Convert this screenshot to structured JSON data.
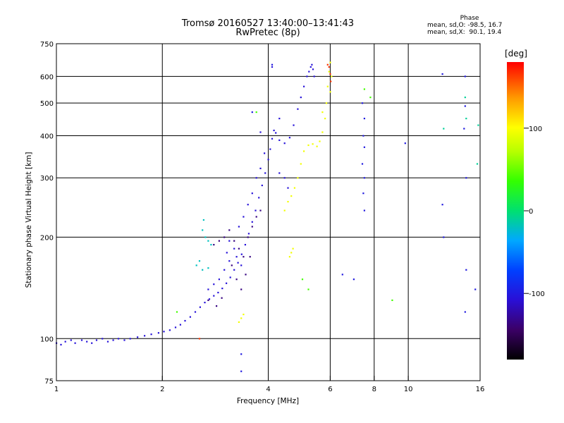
{
  "header": {
    "title_line1": "Tromsø 20160527 13:40:00–13:41:43",
    "title_line2": "RwPretec (8p)"
  },
  "phase_info": {
    "heading": "Phase",
    "o_mode": "mean, sd,O: -98.5, 16.7",
    "x_mode": "mean, sd,X:  90.1, 19.4"
  },
  "colorbar": {
    "unit_label": "[deg]",
    "tick_labels": [
      "100",
      "0",
      "-100"
    ],
    "tick_values": [
      100,
      0,
      -100
    ],
    "range": [
      -180,
      180
    ]
  },
  "chart_data": {
    "type": "scatter",
    "xlabel": "Frequency [MHz]",
    "ylabel": "Stationary phase Virtual Height [km]",
    "xscale": "log",
    "yscale": "log",
    "xlim": [
      1,
      16
    ],
    "ylim": [
      75,
      750
    ],
    "x_ticks": [
      1,
      2,
      4,
      6,
      8,
      10,
      16
    ],
    "y_ticks": [
      75,
      100,
      200,
      300,
      400,
      500,
      600,
      750
    ],
    "grid": true,
    "series": [
      {
        "color_value": -105,
        "points": [
          [
            1.0,
            97
          ],
          [
            1.03,
            96
          ],
          [
            1.06,
            98
          ],
          [
            1.1,
            99
          ],
          [
            1.13,
            97
          ],
          [
            1.18,
            99
          ],
          [
            1.22,
            98
          ],
          [
            1.26,
            97
          ],
          [
            1.3,
            99
          ],
          [
            1.35,
            100
          ],
          [
            1.4,
            98
          ],
          [
            1.45,
            99
          ],
          [
            1.5,
            100
          ],
          [
            1.56,
            99
          ],
          [
            1.62,
            100
          ],
          [
            1.7,
            101
          ],
          [
            1.78,
            102
          ],
          [
            1.86,
            103
          ],
          [
            1.95,
            104
          ],
          [
            2.02,
            105
          ],
          [
            2.1,
            106
          ],
          [
            2.18,
            108
          ],
          [
            2.25,
            110
          ],
          [
            2.32,
            113
          ],
          [
            2.4,
            116
          ],
          [
            2.48,
            120
          ],
          [
            2.56,
            124
          ],
          [
            2.64,
            128
          ],
          [
            2.72,
            131
          ],
          [
            2.8,
            134
          ],
          [
            2.88,
            137
          ],
          [
            2.96,
            141
          ],
          [
            3.04,
            146
          ],
          [
            3.12,
            152
          ],
          [
            3.2,
            160
          ],
          [
            3.28,
            168
          ],
          [
            3.36,
            178
          ],
          [
            3.44,
            190
          ],
          [
            3.52,
            205
          ],
          [
            3.6,
            222
          ],
          [
            3.68,
            240
          ],
          [
            3.76,
            262
          ],
          [
            3.84,
            285
          ],
          [
            3.92,
            310
          ],
          [
            4.0,
            340
          ],
          [
            4.05,
            365
          ],
          [
            4.1,
            392
          ],
          [
            4.15,
            415
          ],
          [
            4.2,
            408
          ],
          [
            4.3,
            388
          ],
          [
            4.45,
            380
          ],
          [
            4.6,
            395
          ],
          [
            4.72,
            430
          ],
          [
            4.85,
            480
          ],
          [
            4.95,
            520
          ],
          [
            5.05,
            560
          ],
          [
            5.15,
            600
          ],
          [
            5.22,
            620
          ],
          [
            5.28,
            640
          ],
          [
            5.32,
            650
          ],
          [
            5.36,
            630
          ],
          [
            5.4,
            600
          ],
          [
            3.05,
            180
          ],
          [
            3.1,
            195
          ],
          [
            3.2,
            185
          ],
          [
            3.3,
            215
          ],
          [
            3.4,
            230
          ],
          [
            3.5,
            250
          ],
          [
            3.6,
            270
          ],
          [
            3.7,
            300
          ],
          [
            3.8,
            320
          ],
          [
            3.9,
            355
          ],
          [
            3.0,
            160
          ],
          [
            3.1,
            170
          ],
          [
            3.25,
            175
          ],
          [
            3.35,
            165
          ],
          [
            2.9,
            150
          ],
          [
            2.8,
            145
          ],
          [
            2.7,
            140
          ],
          [
            4.1,
            640
          ],
          [
            4.3,
            450
          ],
          [
            3.8,
            410
          ],
          [
            4.45,
            300
          ],
          [
            4.55,
            280
          ],
          [
            4.3,
            310
          ]
        ]
      },
      {
        "color_value": -135,
        "points": [
          [
            3.0,
            200
          ],
          [
            3.1,
            210
          ],
          [
            3.2,
            195
          ],
          [
            3.3,
            185
          ],
          [
            3.4,
            175
          ],
          [
            3.5,
            200
          ],
          [
            3.6,
            215
          ],
          [
            3.7,
            230
          ],
          [
            3.8,
            240
          ],
          [
            2.9,
            195
          ],
          [
            2.8,
            190
          ],
          [
            3.15,
            165
          ],
          [
            3.25,
            150
          ],
          [
            3.35,
            140
          ],
          [
            3.45,
            155
          ],
          [
            3.55,
            175
          ],
          [
            2.7,
            130
          ],
          [
            2.85,
            125
          ],
          [
            2.95,
            132
          ]
        ]
      },
      {
        "color_value": -20,
        "points": [
          [
            2.6,
            210
          ],
          [
            2.65,
            200
          ],
          [
            2.7,
            195
          ],
          [
            2.75,
            190
          ],
          [
            2.55,
            170
          ],
          [
            2.5,
            165
          ],
          [
            2.6,
            160
          ],
          [
            2.7,
            162
          ],
          [
            2.62,
            225
          ]
        ]
      },
      {
        "color_value": 95,
        "points": [
          [
            4.45,
            240
          ],
          [
            4.55,
            255
          ],
          [
            4.65,
            265
          ],
          [
            4.75,
            280
          ],
          [
            4.85,
            300
          ],
          [
            4.95,
            330
          ],
          [
            5.05,
            360
          ],
          [
            5.2,
            375
          ],
          [
            5.35,
            378
          ],
          [
            5.5,
            372
          ],
          [
            5.6,
            385
          ],
          [
            5.7,
            410
          ],
          [
            5.8,
            450
          ],
          [
            5.85,
            500
          ],
          [
            5.9,
            560
          ],
          [
            5.95,
            620
          ],
          [
            6.0,
            660
          ],
          [
            6.05,
            600
          ],
          [
            6.0,
            540
          ],
          [
            5.7,
            470
          ],
          [
            4.6,
            175
          ],
          [
            4.65,
            180
          ],
          [
            4.7,
            185
          ],
          [
            3.35,
            115
          ],
          [
            3.4,
            118
          ],
          [
            3.3,
            112
          ]
        ]
      },
      {
        "color_value": 165,
        "points": [
          [
            5.9,
            650
          ],
          [
            5.95,
            640
          ],
          [
            6.0,
            610
          ],
          [
            6.02,
            580
          ],
          [
            2.55,
            100
          ]
        ]
      },
      {
        "color_value": 40,
        "points": [
          [
            7.5,
            550
          ],
          [
            7.8,
            520
          ],
          [
            9.0,
            130
          ],
          [
            3.7,
            470
          ],
          [
            5.0,
            150
          ],
          [
            5.2,
            140
          ],
          [
            2.2,
            120
          ]
        ]
      },
      {
        "color_value": -100,
        "points": [
          [
            7.4,
            500
          ],
          [
            7.5,
            450
          ],
          [
            7.45,
            400
          ],
          [
            7.5,
            370
          ],
          [
            7.4,
            330
          ],
          [
            7.5,
            300
          ],
          [
            7.45,
            270
          ],
          [
            7.5,
            240
          ],
          [
            9.8,
            380
          ],
          [
            12.5,
            610
          ],
          [
            12.5,
            250
          ],
          [
            12.6,
            200
          ],
          [
            14.5,
            600
          ],
          [
            14.5,
            490
          ],
          [
            14.4,
            420
          ],
          [
            14.6,
            300
          ],
          [
            14.5,
            120
          ],
          [
            14.6,
            160
          ],
          [
            15.5,
            140
          ],
          [
            7.0,
            150
          ],
          [
            6.5,
            155
          ],
          [
            3.35,
            90
          ],
          [
            3.35,
            80
          ],
          [
            3.6,
            470
          ],
          [
            4.1,
            650
          ]
        ]
      },
      {
        "color_value": -10,
        "points": [
          [
            14.5,
            520
          ],
          [
            14.6,
            450
          ],
          [
            12.6,
            420
          ],
          [
            15.8,
            430
          ],
          [
            15.7,
            330
          ]
        ]
      }
    ]
  }
}
